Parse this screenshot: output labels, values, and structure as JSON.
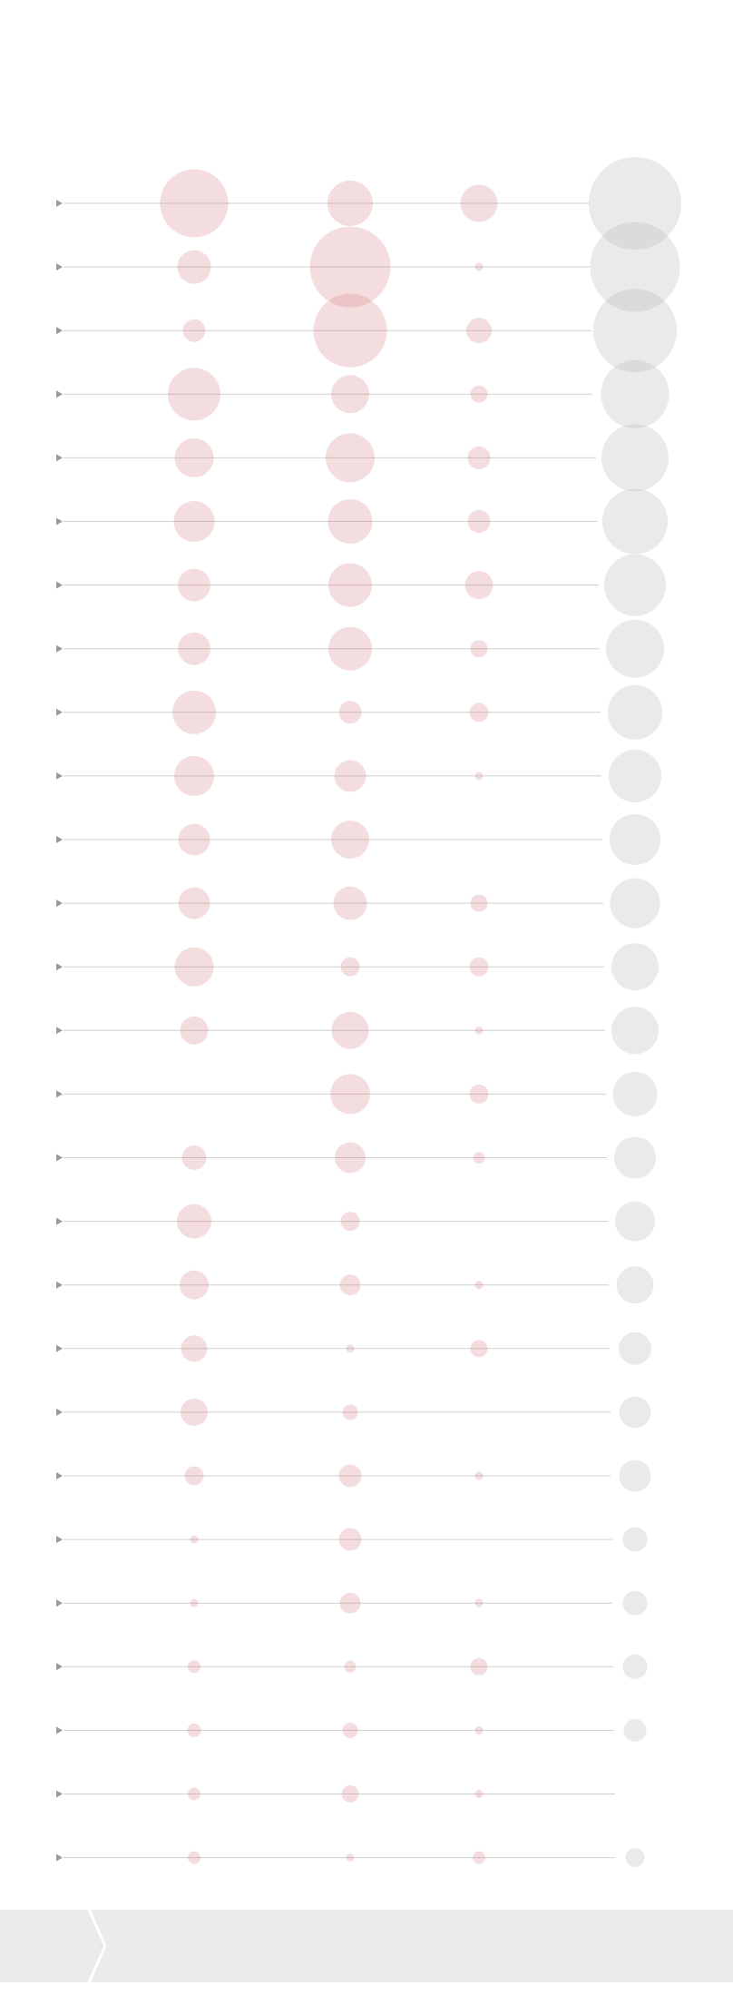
{
  "colors": {
    "pink_bubble": "#d9868a",
    "gray_bubble": "#b5b5b5",
    "row_line": "#cfcfcf",
    "row_marker": "#9a9a9a",
    "footer": "#ebebeb"
  },
  "icons": {
    "row_marker": "play-triangle-icon",
    "footer_separator": "chevron-right-icon"
  },
  "chart_data": {
    "type": "bubble",
    "title": "",
    "xlabel": "",
    "ylabel": "",
    "grid": false,
    "legend": "none",
    "row_count": 27,
    "columns": [
      {
        "name": "",
        "color": "#d9868a",
        "values": [
          75,
          37,
          25,
          58,
          43,
          45,
          36,
          36,
          48,
          44,
          35,
          35,
          43,
          31,
          0,
          27,
          38,
          32,
          29,
          30,
          21,
          9,
          9,
          14,
          15,
          14,
          14
        ]
      },
      {
        "name": "",
        "color": "#d9868a",
        "values": [
          50,
          89,
          81,
          42,
          54,
          49,
          48,
          48,
          25,
          35,
          42,
          37,
          21,
          41,
          44,
          34,
          21,
          23,
          9,
          17,
          25,
          25,
          23,
          13,
          17,
          19,
          9
        ]
      },
      {
        "name": "",
        "color": "#d9868a",
        "values": [
          41,
          9,
          28,
          19,
          25,
          25,
          31,
          19,
          21,
          9,
          0,
          19,
          21,
          9,
          21,
          13,
          0,
          9,
          19,
          0,
          9,
          0,
          9,
          19,
          9,
          9,
          14
        ]
      },
      {
        "name": "",
        "color": "#b5b5b5",
        "values": [
          102,
          99,
          92,
          75,
          74,
          72,
          68,
          64,
          60,
          58,
          56,
          55,
          52,
          52,
          49,
          46,
          44,
          41,
          36,
          35,
          35,
          27,
          27,
          27,
          25,
          0,
          21
        ]
      }
    ],
    "line_lengths": [
      580,
      580,
      582,
      583,
      587,
      588,
      590,
      591,
      592,
      593,
      594,
      595,
      596,
      597,
      598,
      599,
      600,
      601,
      602,
      603,
      603,
      605,
      605,
      606,
      607,
      608,
      608
    ]
  }
}
